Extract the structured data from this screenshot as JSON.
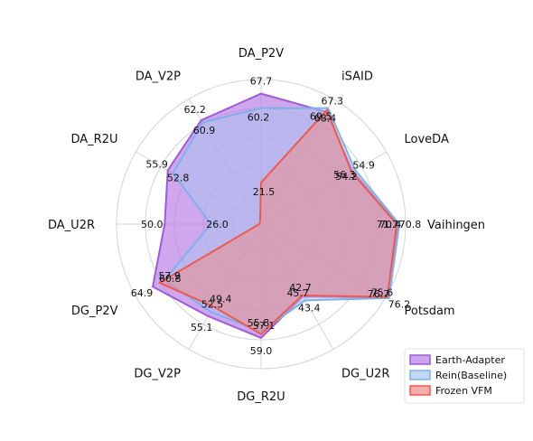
{
  "chart_data": {
    "type": "radar",
    "axes": [
      "DA_P2V",
      "iSAID",
      "LoveDA",
      "Vaihingen",
      "Potsdam",
      "DG_U2R",
      "DG_R2U",
      "DG_V2P",
      "DG_P2V",
      "DA_U2R",
      "DA_R2U",
      "DA_V2P"
    ],
    "series": [
      {
        "name": "Earth-Adapter",
        "color": "#a05ad8",
        "fill": "#b77de3",
        "values": [
          67.7,
          67.3,
          54.9,
          70.8,
          76.2,
          43.4,
          59.0,
          55.1,
          64.9,
          50.0,
          55.9,
          62.2
        ],
        "labels": [
          "67.7",
          "67.3",
          "54.9",
          "70.8",
          "76.2",
          "43.4",
          "59.0",
          "55.1",
          "64.9",
          "50.0",
          "55.9",
          "62.2"
        ]
      },
      {
        "name": "Rein(Baseline)",
        "color": "#7fb0ec",
        "fill": "#a8c6f0",
        "values": [
          60.2,
          69.5,
          56.3,
          71.7,
          76.7,
          45.7,
          55.8,
          52.5,
          57.9,
          26.0,
          52.8,
          60.9
        ],
        "labels": [
          "60.2",
          "69.5",
          "56.3",
          "71.7",
          "76.7",
          "45.7",
          "55.8",
          "52.5",
          "57.9",
          "26.0",
          "52.8",
          "60.9"
        ]
      },
      {
        "name": "Frozen VFM",
        "color": "#ef5a4e",
        "fill": "#ef8a82",
        "values": [
          21.5,
          68.4,
          54.2,
          70.4,
          75.6,
          42.7,
          57.1,
          49.4,
          60.8,
          1.0,
          1.0,
          1.0
        ],
        "labels": [
          "21.5",
          "68.4",
          "54.2",
          "70.4",
          "75.6",
          "42.7",
          "57.1",
          "49.4",
          "60.8",
          "",
          "",
          ""
        ]
      }
    ],
    "legend": {
      "position": "bottom-right"
    },
    "grid": true
  }
}
